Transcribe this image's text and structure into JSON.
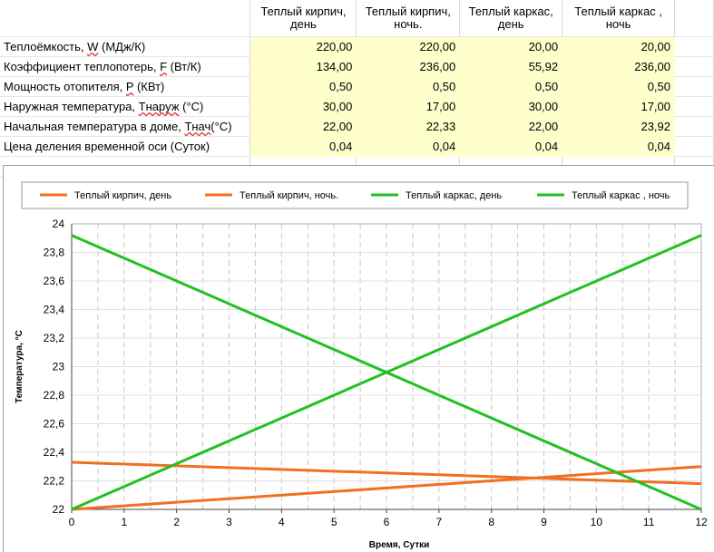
{
  "table": {
    "columns": [
      "Теплый кирпич,\nдень",
      "Теплый кирпич,\nночь.",
      "Теплый каркас,\nдень",
      "Теплый каркас ,\nночь"
    ],
    "rows": [
      {
        "label_pre": "Теплоёмкость, ",
        "label_sym": "W",
        "label_post": " (МДж/К)",
        "values": [
          "220,00",
          "220,00",
          "20,00",
          "20,00"
        ]
      },
      {
        "label_pre": "Коэффициент теплопотерь, ",
        "label_sym": "F",
        "label_post": " (Вт/К)",
        "values": [
          "134,00",
          "236,00",
          "55,92",
          "236,00"
        ]
      },
      {
        "label_pre": "Мощность отопителя, ",
        "label_sym": "P",
        "label_post": " (КВт)",
        "values": [
          "0,50",
          "0,50",
          "0,50",
          "0,50"
        ]
      },
      {
        "label_pre": "Наружная температура, ",
        "label_sym": "Тнаруж",
        "label_post": " (°С)",
        "values": [
          "30,00",
          "17,00",
          "30,00",
          "17,00"
        ]
      },
      {
        "label_pre": "Начальная температура в доме, ",
        "label_sym": "Тнач",
        "label_post": "(°С)",
        "values": [
          "22,00",
          "22,33",
          "22,00",
          "23,92"
        ]
      },
      {
        "label_pre": "Цена деления временной оси (Суток)",
        "label_sym": "",
        "label_post": "",
        "values": [
          "0,04",
          "0,04",
          "0,04",
          "0,04"
        ]
      }
    ]
  },
  "chart_data": {
    "type": "line",
    "xlabel": "Время, Сутки",
    "ylabel": "Температура, °С",
    "xlim": [
      0,
      12
    ],
    "ylim": [
      22,
      24
    ],
    "x_ticks": [
      "0",
      "1",
      "2",
      "3",
      "4",
      "5",
      "6",
      "7",
      "8",
      "9",
      "10",
      "11",
      "12"
    ],
    "y_ticks": [
      "22",
      "22,2",
      "22,4",
      "22,6",
      "22,8",
      "23",
      "23,2",
      "23,4",
      "23,6",
      "23,8",
      "24"
    ],
    "legend_position": "top",
    "series": [
      {
        "name": "Теплый кирпич, день",
        "color": "#f07020",
        "x": [
          0,
          12
        ],
        "y": [
          22.0,
          22.3
        ]
      },
      {
        "name": "Теплый кирпич, ночь.",
        "color": "#f07020",
        "x": [
          0,
          12
        ],
        "y": [
          22.33,
          22.18
        ]
      },
      {
        "name": "Теплый каркас, день",
        "color": "#22c020",
        "x": [
          0,
          12
        ],
        "y": [
          22.0,
          23.92
        ]
      },
      {
        "name": "Теплый каркас , ночь",
        "color": "#22c020",
        "x": [
          0,
          12
        ],
        "y": [
          23.92,
          22.0
        ]
      }
    ]
  }
}
